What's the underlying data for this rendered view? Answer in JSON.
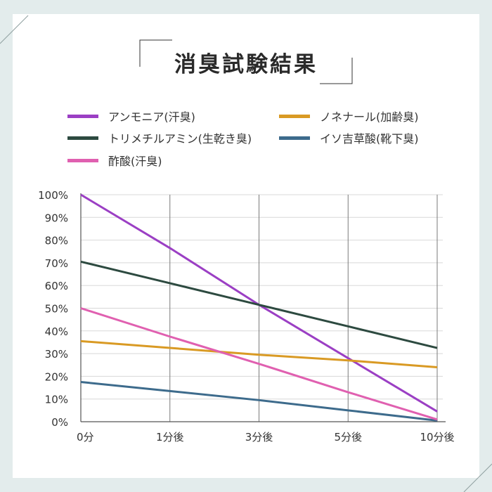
{
  "title": "消臭試験結果",
  "colors": {
    "background": "#e3ecec",
    "panel": "#ffffff",
    "grid_h": "#d8d8d8",
    "grid_v": "#7a7a7a",
    "axis": "#555555"
  },
  "chart_data": {
    "type": "line",
    "title": "消臭試験結果",
    "xlabel": "",
    "ylabel": "",
    "categories": [
      "0分",
      "1分後",
      "3分後",
      "5分後",
      "10分後"
    ],
    "y_ticks": [
      "0%",
      "10%",
      "20%",
      "30%",
      "40%",
      "50%",
      "60%",
      "70%",
      "80%",
      "90%",
      "100%"
    ],
    "ylim": [
      0,
      100
    ],
    "grid": true,
    "legend_position": "top",
    "series": [
      {
        "name": "アンモニア(汗臭)",
        "color": "#9b3fc4",
        "values": [
          100,
          76.5,
          51.5,
          28,
          4.5
        ]
      },
      {
        "name": "ノネナール(加齢臭)",
        "color": "#d99a24",
        "values": [
          35.5,
          32.5,
          29.5,
          27,
          24
        ]
      },
      {
        "name": "トリメチルアミン(生乾き臭)",
        "color": "#2d4a40",
        "values": [
          70.5,
          61,
          51.5,
          42,
          32.5
        ]
      },
      {
        "name": "イソ吉草酸(靴下臭)",
        "color": "#3d6b8c",
        "values": [
          17.5,
          13.5,
          9.5,
          5,
          0.5
        ]
      },
      {
        "name": "酢酸(汗臭)",
        "color": "#e060b0",
        "values": [
          50,
          37.5,
          25.5,
          13,
          1
        ]
      }
    ]
  }
}
